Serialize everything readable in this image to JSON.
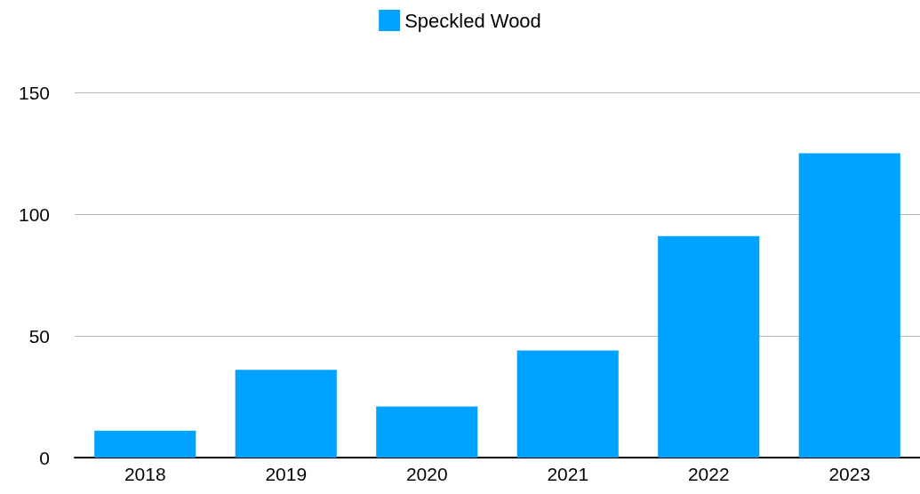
{
  "chart_data": {
    "type": "bar",
    "categories": [
      "2018",
      "2019",
      "2020",
      "2021",
      "2022",
      "2023"
    ],
    "series": [
      {
        "name": "Speckled Wood",
        "color": "#00a2ff",
        "values": [
          11,
          36,
          21,
          44,
          91,
          125
        ]
      }
    ],
    "ylim": [
      0,
      150
    ],
    "yticks": [
      0,
      50,
      100,
      150
    ],
    "grid": "y",
    "legend": "top"
  }
}
